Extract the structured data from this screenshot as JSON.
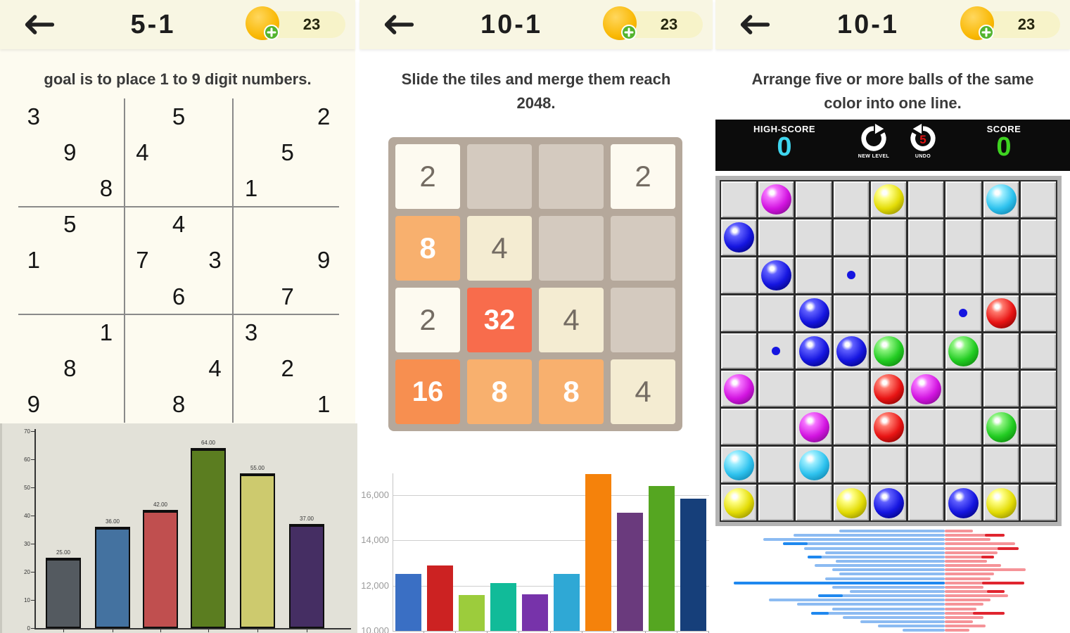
{
  "panels": [
    {
      "id": "sudoku",
      "title": "5-1",
      "coins": "23",
      "instruction": "goal is to place 1 to 9 digit numbers."
    },
    {
      "id": "2048",
      "title": "10-1",
      "coins": "23",
      "instruction": "Slide the tiles and merge them reach\n2048."
    },
    {
      "id": "lines",
      "title": "10-1",
      "coins": "23",
      "instruction": "Arrange five or more balls of the same\ncolor into one line."
    }
  ],
  "sudoku": {
    "rows": 9,
    "cols": 9,
    "givens": [
      [
        1,
        1,
        "3"
      ],
      [
        1,
        5,
        "5"
      ],
      [
        1,
        9,
        "2"
      ],
      [
        2,
        2,
        "9"
      ],
      [
        2,
        4,
        "4"
      ],
      [
        2,
        8,
        "5"
      ],
      [
        3,
        3,
        "8"
      ],
      [
        3,
        7,
        "1"
      ],
      [
        4,
        2,
        "5"
      ],
      [
        4,
        5,
        "4"
      ],
      [
        5,
        1,
        "1"
      ],
      [
        5,
        4,
        "7"
      ],
      [
        5,
        6,
        "3"
      ],
      [
        5,
        9,
        "9"
      ],
      [
        6,
        5,
        "6"
      ],
      [
        6,
        8,
        "7"
      ],
      [
        7,
        3,
        "1"
      ],
      [
        7,
        7,
        "3"
      ],
      [
        8,
        2,
        "8"
      ],
      [
        8,
        6,
        "4"
      ],
      [
        8,
        8,
        "2"
      ],
      [
        9,
        1,
        "9"
      ],
      [
        9,
        5,
        "8"
      ],
      [
        9,
        9,
        "1"
      ]
    ]
  },
  "game2048": {
    "grid": [
      [
        "2",
        "",
        "",
        "2"
      ],
      [
        "8",
        "4",
        "",
        ""
      ],
      [
        "2",
        "32",
        "4",
        ""
      ],
      [
        "16",
        "8",
        "8",
        "4"
      ]
    ],
    "board_bg": "#b5a89b",
    "empty_cell": "#d4cabf",
    "tile_colors": {
      "2": [
        "#fdfaf0",
        "#746c63"
      ],
      "4": [
        "#f4ecd2",
        "#746c63"
      ],
      "8": [
        "#f8b06e",
        "#ffffff"
      ],
      "16": [
        "#f78f50",
        "#ffffff"
      ],
      "32": [
        "#f86c4c",
        "#ffffff"
      ]
    }
  },
  "lines": {
    "score_bar": {
      "high_score_label": "HIGH-SCORE",
      "high_score_value": "0",
      "high_score_color": "#3fd6ef",
      "new_level_label": "NEW LEVEL",
      "undo_label": "UNDO",
      "undo_count": "5",
      "score_label": "SCORE",
      "score_value": "0",
      "score_color": "#3ed321"
    },
    "rows": 9,
    "cols": 9,
    "balls": [
      [
        1,
        2,
        "magenta"
      ],
      [
        1,
        5,
        "yellow"
      ],
      [
        1,
        8,
        "cyan"
      ],
      [
        2,
        1,
        "blue"
      ],
      [
        3,
        2,
        "blue"
      ],
      [
        4,
        3,
        "blue"
      ],
      [
        4,
        8,
        "red"
      ],
      [
        5,
        3,
        "blue"
      ],
      [
        5,
        4,
        "blue"
      ],
      [
        5,
        5,
        "green"
      ],
      [
        5,
        7,
        "green"
      ],
      [
        6,
        1,
        "magenta"
      ],
      [
        6,
        5,
        "red"
      ],
      [
        6,
        6,
        "magenta"
      ],
      [
        7,
        3,
        "magenta"
      ],
      [
        7,
        5,
        "red"
      ],
      [
        7,
        8,
        "green"
      ],
      [
        8,
        1,
        "cyan"
      ],
      [
        8,
        3,
        "cyan"
      ],
      [
        9,
        1,
        "yellow"
      ],
      [
        9,
        4,
        "yellow"
      ],
      [
        9,
        5,
        "blue"
      ],
      [
        9,
        7,
        "blue"
      ],
      [
        9,
        8,
        "yellow"
      ]
    ],
    "dots": [
      [
        3,
        4,
        "blue"
      ],
      [
        4,
        7,
        "blue"
      ],
      [
        5,
        2,
        "blue"
      ]
    ],
    "palette": {
      "magenta": [
        "#f573ff",
        "#d214e0",
        "#7a0a86"
      ],
      "blue": [
        "#6060ff",
        "#1515e0",
        "#000070"
      ],
      "yellow": [
        "#ffff85",
        "#e3dc06",
        "#8a8500"
      ],
      "cyan": [
        "#9ceeff",
        "#2ec2ee",
        "#0c7ca6"
      ],
      "red": [
        "#ff7a6e",
        "#e81414",
        "#7c0000"
      ],
      "green": [
        "#8cf47f",
        "#22cc22",
        "#0b7d0b"
      ]
    }
  },
  "chart_data": [
    {
      "type": "bar",
      "title": "",
      "xlabel": "",
      "ylabel": "",
      "values": [
        25,
        36,
        42,
        64,
        55,
        37
      ],
      "bar_labels": [
        "25.00",
        "36.00",
        "42.00",
        "64.00",
        "55.00",
        "37.00"
      ],
      "colors": [
        "#545a60",
        "#4472a0",
        "#c04f4f",
        "#5b7d20",
        "#cdca6e",
        "#452e63"
      ],
      "ylim": [
        0,
        70
      ],
      "ytick_step": 10,
      "grid": false,
      "bg": "#e2e1d8"
    },
    {
      "type": "bar",
      "title": "",
      "xlabel": "",
      "ylabel": "",
      "values": [
        12520,
        12870,
        11570,
        12110,
        11600,
        12520,
        16930,
        15200,
        16400,
        15830
      ],
      "colors": [
        "#3a6fc4",
        "#cc2222",
        "#9ccc3c",
        "#11bb99",
        "#7733aa",
        "#2fa8d5",
        "#f5820b",
        "#6a3a7d",
        "#55a621",
        "#163f7a"
      ],
      "ylim": [
        10000,
        17800
      ],
      "yticks": [
        10000,
        12000,
        14000,
        16000
      ],
      "ytick_labels": [
        "10,000",
        "12,000",
        "14,000",
        "16,000"
      ],
      "grid": true,
      "bg": "#ffffff"
    },
    {
      "type": "pyramid",
      "left_color": "#8cbbf2",
      "left_accent": "#1f88ef",
      "right_color": "#f59398",
      "right_accent": "#e0252f",
      "rows": [
        [
          150,
          0,
          40,
          0
        ],
        [
          215,
          0,
          85,
          28
        ],
        [
          258,
          0,
          65,
          0
        ],
        [
          230,
          35,
          100,
          0
        ],
        [
          200,
          0,
          105,
          30
        ],
        [
          170,
          0,
          75,
          0
        ],
        [
          195,
          20,
          70,
          18
        ],
        [
          155,
          0,
          60,
          0
        ],
        [
          185,
          0,
          80,
          0
        ],
        [
          160,
          0,
          115,
          0
        ],
        [
          150,
          0,
          70,
          0
        ],
        [
          170,
          0,
          65,
          0
        ],
        [
          300,
          300,
          113,
          60
        ],
        [
          160,
          0,
          55,
          0
        ],
        [
          135,
          0,
          85,
          25
        ],
        [
          180,
          35,
          90,
          0
        ],
        [
          250,
          0,
          65,
          0
        ],
        [
          210,
          0,
          55,
          0
        ],
        [
          160,
          0,
          45,
          0
        ],
        [
          190,
          25,
          85,
          45
        ],
        [
          145,
          0,
          55,
          0
        ],
        [
          120,
          0,
          40,
          0
        ],
        [
          95,
          0,
          58,
          0
        ],
        [
          60,
          0,
          35,
          0
        ]
      ]
    }
  ]
}
